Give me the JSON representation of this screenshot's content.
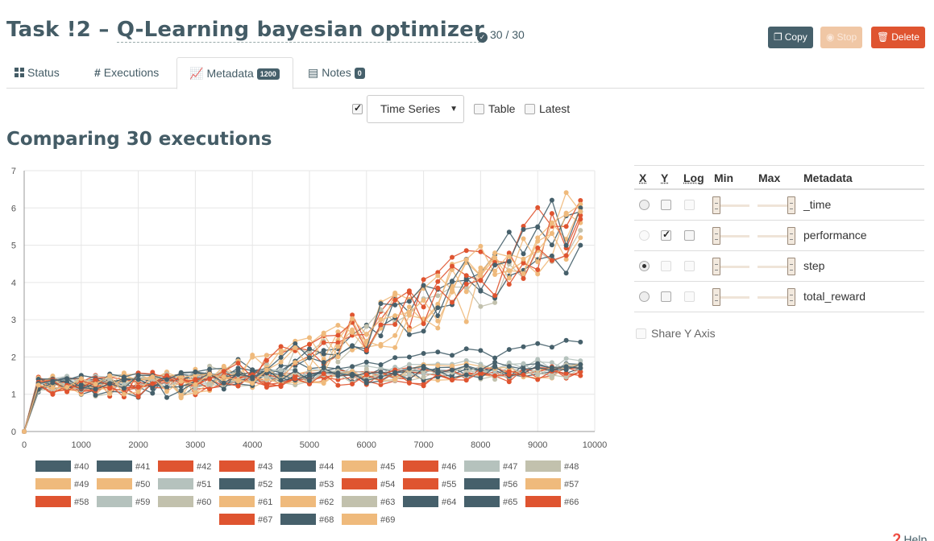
{
  "header": {
    "task_prefix": "Task !2 –",
    "task_name": "Q-Learning bayesian optimizer",
    "done": "30 / 30"
  },
  "actions": {
    "copy": "Copy",
    "stop": "Stop",
    "delete": "Delete"
  },
  "tabs": [
    {
      "label": "Status",
      "icon": "grid-icon"
    },
    {
      "label": "Executions",
      "icon": "hash-icon"
    },
    {
      "label": "Metadata",
      "badge": "1200",
      "icon": "line-chart-icon",
      "active": true
    },
    {
      "label": "Notes",
      "badge": "0",
      "icon": "note-icon"
    }
  ],
  "view_options": {
    "main_checked": true,
    "selected_view": "Time Series",
    "table_label": "Table",
    "latest_label": "Latest"
  },
  "comparing_title": "Comparing 30 executions",
  "panel": {
    "headers": {
      "x": "X",
      "y": "Y",
      "log": "Log",
      "min": "Min",
      "max": "Max",
      "metadata": "Metadata"
    },
    "rows": [
      {
        "name": "_time",
        "x": false,
        "y": false,
        "log": false
      },
      {
        "name": "performance",
        "x": false,
        "y": true,
        "log": false
      },
      {
        "name": "step",
        "x": true,
        "y": false,
        "log": false
      },
      {
        "name": "total_reward",
        "x": false,
        "y": false,
        "log": false
      }
    ],
    "share_y_label": "Share Y Axis",
    "help_label": "Help"
  },
  "colors": {
    "slate": "#46606b",
    "orange": "#df5430",
    "peach": "#efba7c",
    "light_grey": "#b5c2bd",
    "taupe": "#c2c1ad",
    "stop_disabled": "#f0c7a5"
  },
  "chart_data": {
    "type": "line",
    "xlim": [
      0,
      10000
    ],
    "ylim": [
      0,
      7
    ],
    "x_ticks": [
      "0",
      "1000",
      "2000",
      "3000",
      "4000",
      "5000",
      "6000",
      "7000",
      "8000",
      "9000",
      "10000"
    ],
    "y_ticks": [
      "0",
      "1",
      "2",
      "3",
      "4",
      "5",
      "6",
      "7"
    ],
    "grid": true,
    "legend_position": "bottom",
    "series": [
      {
        "name": "#40",
        "color": "#46606b",
        "group": "flat",
        "end": 1.7
      },
      {
        "name": "#41",
        "color": "#46606b",
        "group": "rise",
        "end": 5.9
      },
      {
        "name": "#42",
        "color": "#df5430",
        "group": "flat",
        "end": 1.6
      },
      {
        "name": "#43",
        "color": "#df5430",
        "group": "rise",
        "end": 6.2
      },
      {
        "name": "#44",
        "color": "#46606b",
        "group": "flat",
        "end": 1.8
      },
      {
        "name": "#45",
        "color": "#efba7c",
        "group": "rise",
        "end": 5.6
      },
      {
        "name": "#46",
        "color": "#df5430",
        "group": "flat",
        "end": 1.7
      },
      {
        "name": "#47",
        "color": "#b5c2bd",
        "group": "flat",
        "end": 1.8
      },
      {
        "name": "#48",
        "color": "#c2c1ad",
        "group": "rise",
        "end": 5.4
      },
      {
        "name": "#49",
        "color": "#efba7c",
        "group": "rise",
        "end": 6.0
      },
      {
        "name": "#50",
        "color": "#efba7c",
        "group": "flat",
        "end": 1.7
      },
      {
        "name": "#51",
        "color": "#b5c2bd",
        "group": "flat",
        "end": 1.9
      },
      {
        "name": "#52",
        "color": "#46606b",
        "group": "rise",
        "end": 5.0
      },
      {
        "name": "#53",
        "color": "#46606b",
        "group": "flat",
        "end": 2.4
      },
      {
        "name": "#54",
        "color": "#df5430",
        "group": "flat",
        "end": 1.6
      },
      {
        "name": "#55",
        "color": "#df5430",
        "group": "rise",
        "end": 5.8
      },
      {
        "name": "#56",
        "color": "#46606b",
        "group": "flat",
        "end": 1.7
      },
      {
        "name": "#57",
        "color": "#efba7c",
        "group": "rise",
        "end": 5.2
      },
      {
        "name": "#58",
        "color": "#df5430",
        "group": "flat",
        "end": 1.6
      },
      {
        "name": "#59",
        "color": "#b5c2bd",
        "group": "flat",
        "end": 1.8
      },
      {
        "name": "#60",
        "color": "#c2c1ad",
        "group": "flat",
        "end": 1.7
      },
      {
        "name": "#61",
        "color": "#efba7c",
        "group": "rise",
        "end": 6.1
      },
      {
        "name": "#62",
        "color": "#efba7c",
        "group": "flat",
        "end": 1.8
      },
      {
        "name": "#63",
        "color": "#c2c1ad",
        "group": "flat",
        "end": 1.7
      },
      {
        "name": "#64",
        "color": "#46606b",
        "group": "rise",
        "end": 6.0
      },
      {
        "name": "#65",
        "color": "#46606b",
        "group": "flat",
        "end": 1.7
      },
      {
        "name": "#66",
        "color": "#df5430",
        "group": "flat",
        "end": 1.5
      },
      {
        "name": "#67",
        "color": "#df5430",
        "group": "rise",
        "end": 5.7
      },
      {
        "name": "#68",
        "color": "#46606b",
        "group": "flat",
        "end": 1.8
      },
      {
        "name": "#69",
        "color": "#efba7c",
        "group": "rise",
        "end": 5.9
      }
    ]
  }
}
